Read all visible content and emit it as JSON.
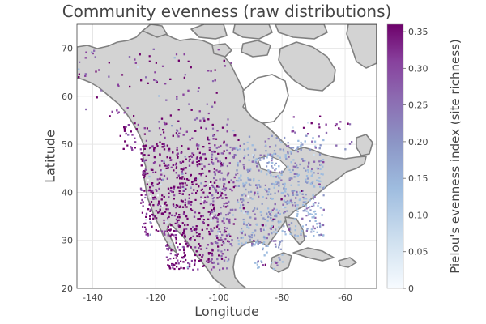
{
  "title": "Community evenness (raw distributions)",
  "axes": {
    "xlabel": "Longitude",
    "ylabel": "Latitude",
    "xlim": [
      -145,
      -50
    ],
    "ylim": [
      20,
      75
    ],
    "xticks": [
      "-140",
      "-120",
      "-100",
      "-80",
      "-60"
    ],
    "yticks": [
      "20",
      "30",
      "40",
      "50",
      "60",
      "70"
    ],
    "grid": true
  },
  "colorbar": {
    "label": "Pielou's evenness index (site richness)",
    "range": [
      0,
      0.36
    ],
    "ticks": [
      "0",
      "0.05",
      "0.10",
      "0.15",
      "0.20",
      "0.25",
      "0.30",
      "0.35"
    ],
    "colors": [
      "#f7fbff",
      "#cfe0ef",
      "#9ebcdf",
      "#8c96c6",
      "#8c6bb1",
      "#88419d",
      "#6e016b"
    ]
  },
  "map": {
    "land_color": "#d3d3d3",
    "coast_color": "#808080"
  }
}
